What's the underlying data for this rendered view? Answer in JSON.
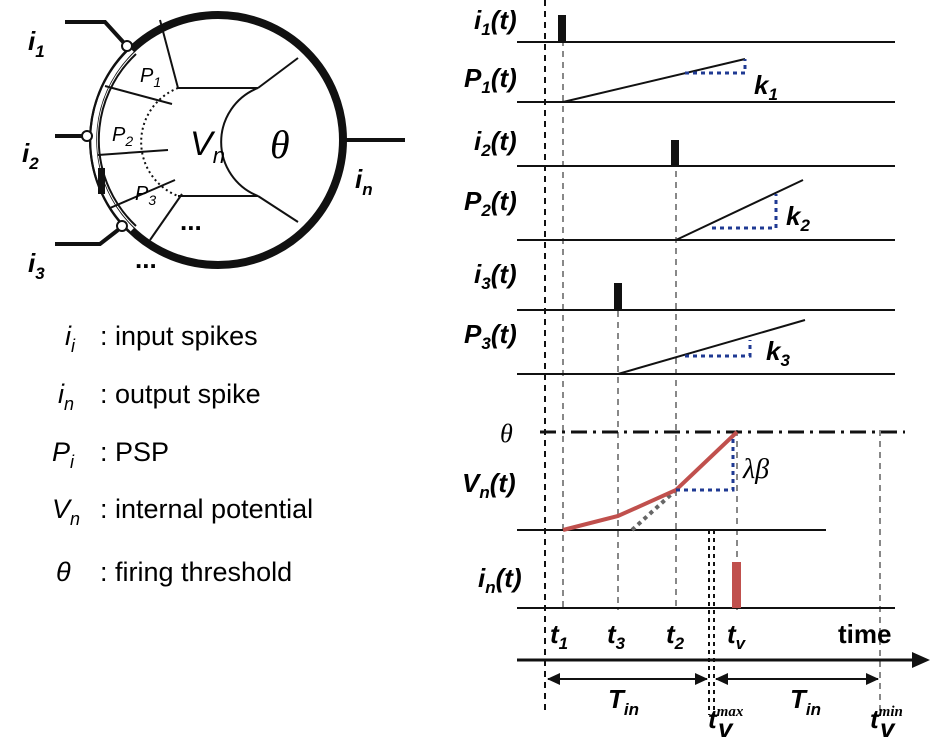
{
  "neuron": {
    "inputs": [
      "i",
      "i",
      "i"
    ],
    "input_subs": [
      "1",
      "2",
      "3"
    ],
    "output": "i",
    "output_sub": "n",
    "psp": [
      "P",
      "P",
      "P"
    ],
    "psp_subs": [
      "1",
      "2",
      "3"
    ],
    "potential": "V",
    "potential_sub": "n",
    "threshold": "θ",
    "ellipsis": "..."
  },
  "legend": [
    {
      "sym": "i",
      "sub": "i",
      "text": ": input spikes"
    },
    {
      "sym": "i",
      "sub": "n",
      "text": ": output spike"
    },
    {
      "sym": "P",
      "sub": "i",
      "text": ": PSP"
    },
    {
      "sym": "V",
      "sub": "n",
      "text": ": internal potential"
    },
    {
      "sym": "θ",
      "sub": "",
      "text": ": firing threshold"
    }
  ],
  "timing": {
    "rows": [
      {
        "sym": "i",
        "sub": "1",
        "suffix": "(t)"
      },
      {
        "sym": "P",
        "sub": "1",
        "suffix": "(t)"
      },
      {
        "sym": "i",
        "sub": "2",
        "suffix": "(t)"
      },
      {
        "sym": "P",
        "sub": "2",
        "suffix": "(t)"
      },
      {
        "sym": "i",
        "sub": "3",
        "suffix": "(t)"
      },
      {
        "sym": "P",
        "sub": "3",
        "suffix": "(t)"
      },
      {
        "sym": "V",
        "sub": "n",
        "suffix": "(t)"
      },
      {
        "sym": "i",
        "sub": "n",
        "suffix": "(t)"
      }
    ],
    "slopes": [
      {
        "sym": "k",
        "sub": "1"
      },
      {
        "sym": "k",
        "sub": "2"
      },
      {
        "sym": "k",
        "sub": "3"
      }
    ],
    "threshold_label": "θ",
    "lambda_beta": "λβ",
    "time_ticks": [
      {
        "sym": "t",
        "sub": "1"
      },
      {
        "sym": "t",
        "sub": "3"
      },
      {
        "sym": "t",
        "sub": "2"
      },
      {
        "sym": "t",
        "sub": "v"
      }
    ],
    "time_label": "time",
    "tin": {
      "sym": "T",
      "sub": "in"
    },
    "tmax": {
      "sym": "t",
      "sub": "v",
      "sup": "max"
    },
    "tmin": {
      "sym": "t",
      "sub": "v",
      "sup": "min"
    }
  },
  "colors": {
    "line": "#111111",
    "potential": "#c0504d",
    "guide": "#1f3a93",
    "dashed": "#888888"
  }
}
